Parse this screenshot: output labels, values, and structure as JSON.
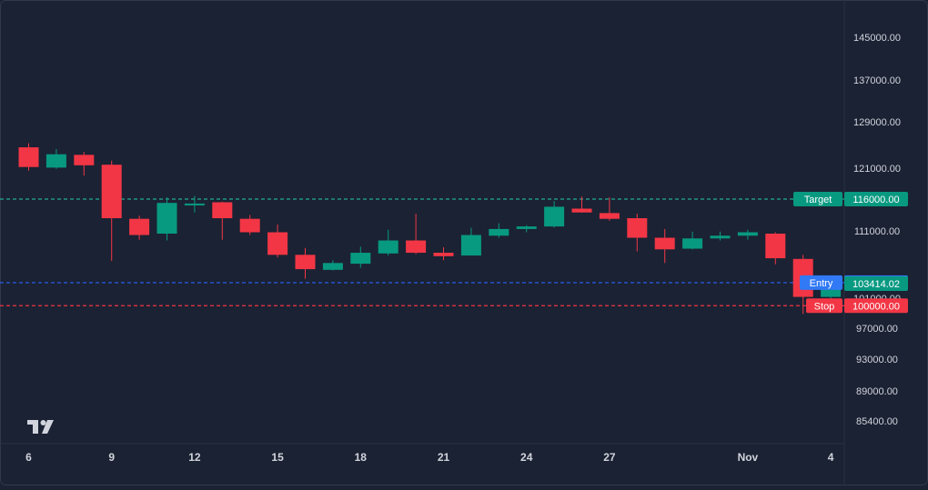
{
  "chart_data": {
    "type": "candlestick",
    "title": "",
    "xlabel": "",
    "ylabel": "",
    "x_tick_labels": [
      {
        "label": "6",
        "index": 0
      },
      {
        "label": "9",
        "index": 3
      },
      {
        "label": "12",
        "index": 6
      },
      {
        "label": "15",
        "index": 9
      },
      {
        "label": "18",
        "index": 12
      },
      {
        "label": "21",
        "index": 15
      },
      {
        "label": "24",
        "index": 18
      },
      {
        "label": "27",
        "index": 21
      },
      {
        "label": "Nov",
        "index": 26
      },
      {
        "label": "4",
        "index": 29
      }
    ],
    "y_ticks": [
      "145000.00",
      "137000.00",
      "129000.00",
      "121000.00",
      "111000.00",
      "101000.00",
      "97000.00",
      "93000.00",
      "89000.00",
      "85400.00"
    ],
    "ylim": [
      83000,
      150000
    ],
    "price_scale": "nonlinear (ticks as labeled)",
    "candles": [
      {
        "o": 124600,
        "h": 125300,
        "l": 120600,
        "c": 121200
      },
      {
        "o": 121100,
        "h": 124300,
        "l": 120900,
        "c": 123400
      },
      {
        "o": 123300,
        "h": 123800,
        "l": 119800,
        "c": 121500
      },
      {
        "o": 121600,
        "h": 122300,
        "l": 106600,
        "c": 113000
      },
      {
        "o": 112900,
        "h": 113400,
        "l": 109700,
        "c": 110400
      },
      {
        "o": 110600,
        "h": 116300,
        "l": 109600,
        "c": 115400
      },
      {
        "o": 115100,
        "h": 116500,
        "l": 113900,
        "c": 115300
      },
      {
        "o": 115500,
        "h": 115600,
        "l": 109700,
        "c": 113000
      },
      {
        "o": 112900,
        "h": 113500,
        "l": 110400,
        "c": 110800
      },
      {
        "o": 110800,
        "h": 112000,
        "l": 107100,
        "c": 107500
      },
      {
        "o": 107500,
        "h": 108500,
        "l": 104000,
        "c": 105400
      },
      {
        "o": 105300,
        "h": 106700,
        "l": 105200,
        "c": 106300
      },
      {
        "o": 106200,
        "h": 108700,
        "l": 105600,
        "c": 107800
      },
      {
        "o": 107700,
        "h": 111200,
        "l": 107400,
        "c": 109600
      },
      {
        "o": 109600,
        "h": 113700,
        "l": 107600,
        "c": 107800
      },
      {
        "o": 107800,
        "h": 108600,
        "l": 106700,
        "c": 107300
      },
      {
        "o": 107400,
        "h": 111500,
        "l": 107400,
        "c": 110400
      },
      {
        "o": 110300,
        "h": 112200,
        "l": 110000,
        "c": 111300
      },
      {
        "o": 111300,
        "h": 111900,
        "l": 110800,
        "c": 111700
      },
      {
        "o": 111700,
        "h": 115700,
        "l": 111500,
        "c": 114800
      },
      {
        "o": 114500,
        "h": 116400,
        "l": 113900,
        "c": 113900
      },
      {
        "o": 113800,
        "h": 116300,
        "l": 112600,
        "c": 112900
      },
      {
        "o": 113000,
        "h": 113700,
        "l": 108000,
        "c": 110000
      },
      {
        "o": 110000,
        "h": 111300,
        "l": 106300,
        "c": 108300
      },
      {
        "o": 108400,
        "h": 110900,
        "l": 108300,
        "c": 109900
      },
      {
        "o": 109900,
        "h": 110900,
        "l": 109600,
        "c": 110300
      },
      {
        "o": 110300,
        "h": 111200,
        "l": 109700,
        "c": 110800
      },
      {
        "o": 110600,
        "h": 110800,
        "l": 106100,
        "c": 107000
      },
      {
        "o": 106900,
        "h": 107500,
        "l": 98900,
        "c": 101200
      },
      {
        "o": 101200,
        "h": 103700,
        "l": 100900,
        "c": 103414.02
      }
    ],
    "levels": [
      {
        "label": "Target",
        "value": "116000.00",
        "price": 116000,
        "color": "#22ab94"
      },
      {
        "label": "Entry",
        "value": "103424.74",
        "price": 103424.74,
        "color": "#2962ff"
      },
      {
        "label": "Stop",
        "value": "100000.00",
        "price": 100000,
        "color": "#f23645"
      }
    ],
    "last_price": {
      "value": "103414.02",
      "price": 103414.02
    }
  },
  "colors": {
    "background": "#1b2233",
    "up": "#089981",
    "down": "#f23645",
    "axis_text": "#d1d4dc",
    "entry_label_bg": "#3179f5",
    "last_price_bg": "#089981"
  },
  "logo": {
    "icon": "tradingview-logo-icon",
    "text": "TV"
  }
}
